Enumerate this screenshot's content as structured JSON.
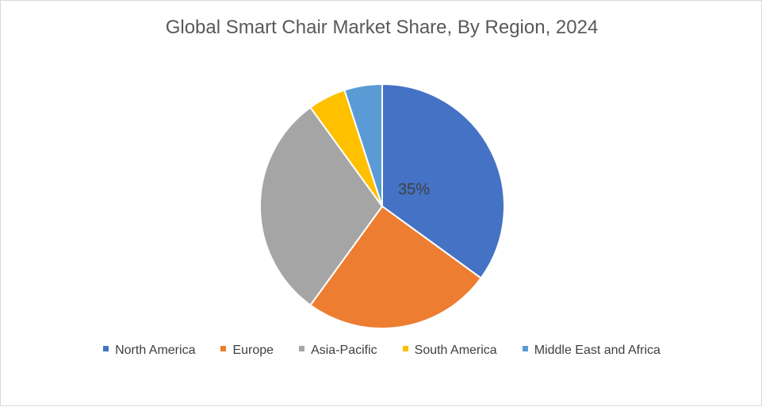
{
  "chart_data": {
    "type": "pie",
    "title": "Global Smart Chair Market Share, By Region, 2024",
    "categories": [
      "North America",
      "Europe",
      "Asia-Pacific",
      "South America",
      "Middle East and Africa"
    ],
    "values": [
      35,
      25,
      30,
      5,
      5
    ],
    "colors": [
      "#4472C4",
      "#ED7D31",
      "#A5A5A5",
      "#FFC000",
      "#5B9BD5"
    ],
    "data_labels": [
      {
        "category": "North America",
        "text": "35%"
      }
    ],
    "legend_position": "bottom"
  }
}
